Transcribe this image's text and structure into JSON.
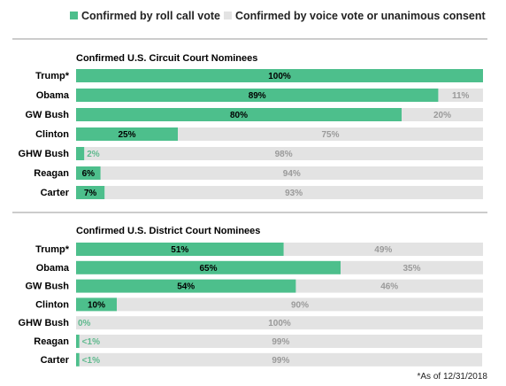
{
  "legend": {
    "items": [
      {
        "label": "Confirmed by roll call vote",
        "color": "#4dbf8c"
      },
      {
        "label": "Confirmed by voice vote or unanimous consent",
        "color": "#e3e3e3"
      }
    ]
  },
  "footnote": "*As of 12/31/2018",
  "chart_data": [
    {
      "type": "bar",
      "orientation": "horizontal",
      "stacked": true,
      "title": "Confirmed U.S. Circuit Court Nominees",
      "categories": [
        "Trump*",
        "Obama",
        "GW Bush",
        "Clinton",
        "GHW Bush",
        "Reagan",
        "Carter"
      ],
      "series": [
        {
          "name": "Confirmed by roll call vote",
          "values": [
            100,
            89,
            80,
            25,
            2,
            6,
            7
          ],
          "labels": [
            "100%",
            "89%",
            "80%",
            "25%",
            "2%",
            "6%",
            "7%"
          ]
        },
        {
          "name": "Confirmed by voice vote or unanimous consent",
          "values": [
            0,
            11,
            20,
            75,
            98,
            94,
            93
          ],
          "labels": [
            "",
            "11%",
            "20%",
            "75%",
            "98%",
            "94%",
            "93%"
          ]
        }
      ],
      "xlim": [
        0,
        100
      ]
    },
    {
      "type": "bar",
      "orientation": "horizontal",
      "stacked": true,
      "title": "Confirmed U.S. District Court Nominees",
      "categories": [
        "Trump*",
        "Obama",
        "GW Bush",
        "Clinton",
        "GHW Bush",
        "Reagan",
        "Carter"
      ],
      "series": [
        {
          "name": "Confirmed by roll call vote",
          "values": [
            51,
            65,
            54,
            10,
            0,
            0.8,
            0.8
          ],
          "labels": [
            "51%",
            "65%",
            "54%",
            "10%",
            "0%",
            "<1%",
            "<1%"
          ]
        },
        {
          "name": "Confirmed by voice vote or unanimous consent",
          "values": [
            49,
            35,
            46,
            90,
            100,
            99,
            99
          ],
          "labels": [
            "49%",
            "35%",
            "46%",
            "90%",
            "100%",
            "99%",
            "99%"
          ]
        }
      ],
      "xlim": [
        0,
        100
      ]
    }
  ]
}
